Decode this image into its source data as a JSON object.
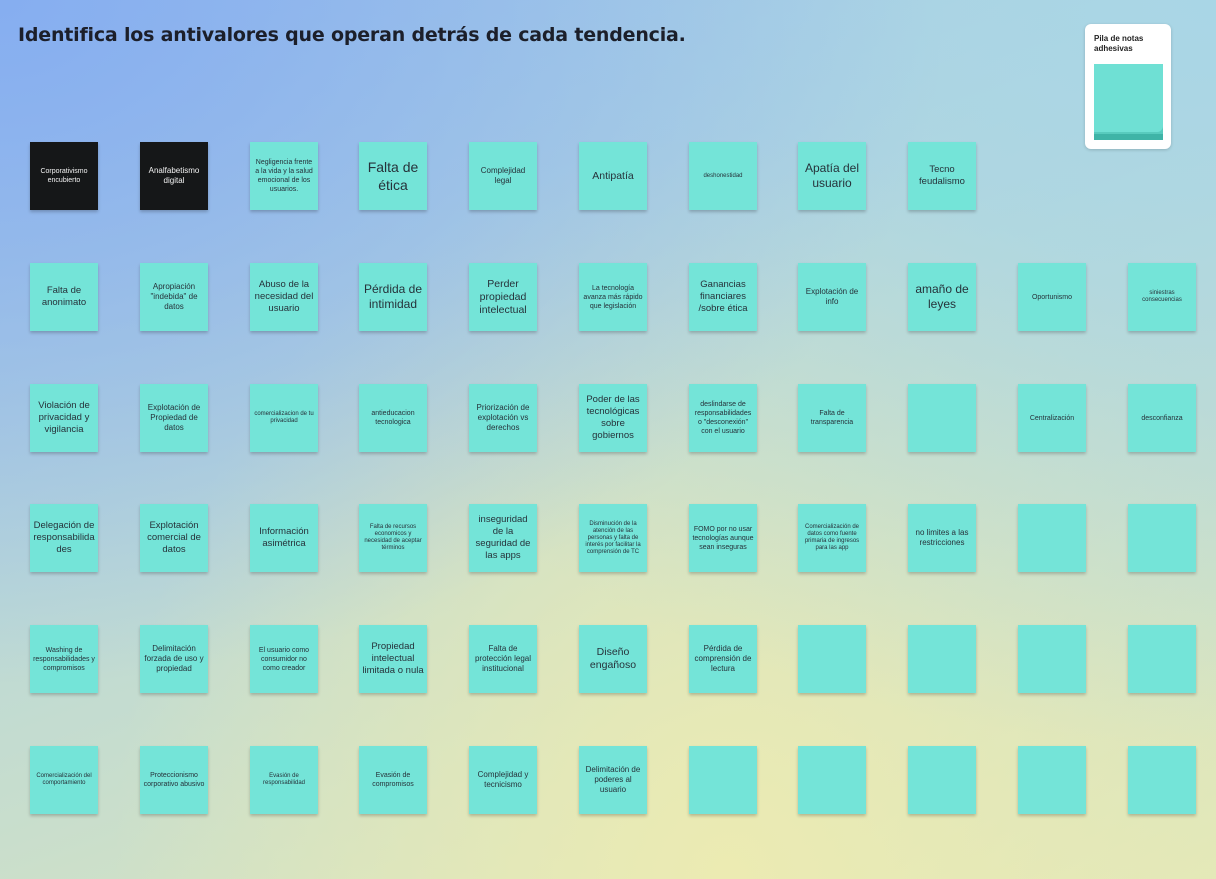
{
  "board": {
    "title": "Identifica los antivalores que operan detrás de cada tendencia.",
    "pile_label": "Pila de notas adhesivas"
  },
  "rows": [
    [
      "Corporativismo encubierto",
      "Analfabetismo digital",
      "Negligencia frente a la vida y la salud emocional de los usuarios.",
      "Falta de ética",
      "Complejidad legal",
      "Antipatía",
      "deshonestidad",
      "Apatía del usuario",
      "Tecno feudalismo"
    ],
    [
      "Falta de anonimato",
      "Apropiación \"indebida\" de datos",
      "Abuso de la necesidad del usuario",
      "Pérdida de intimidad",
      "Perder propiedad intelectual",
      "La tecnología avanza más rápido que legislación",
      "Ganancias financiares /sobre ética",
      "Explotación de info",
      "amaño de leyes",
      "Oportunismo",
      "siniestras consecuencias"
    ],
    [
      "Violación de privacidad y vigilancia",
      "Explotación de Propiedad de datos",
      "comercializacion de tu privacidad",
      "antieducacion tecnologica",
      "Priorización de explotación vs derechos",
      "Poder de las tecnológicas sobre gobiernos",
      "deslindarse de responsabilidades o \"desconexión\" con el usuario",
      "Falta de transparencia",
      "",
      "Centralización",
      "desconfianza"
    ],
    [
      "Delegación de responsabilidades",
      "Explotación comercial de datos",
      "Información asimétrica",
      "Falta de recursos economicos y necesidad de aceptar términos",
      "inseguridad de la seguridad de las apps",
      "Disminución de la atención de las personas y falta de interés por facilitar la comprensión de TC",
      "FOMO por no usar tecnologías aunque sean inseguras",
      "Comercialización de datos como fuente primaria de ingresos para las app",
      "no limites a las restricciones",
      "",
      ""
    ],
    [
      "Washing de responsabilidades y compromisos",
      "Delimitación forzada de uso y propiedad",
      "El usuario como consumidor no como creador",
      "Propiedad intelectual limitada o nula",
      "Falta de protección legal institucional",
      "Diseño engañoso",
      "Pérdida de comprensión de lectura",
      "",
      "",
      "",
      ""
    ],
    [
      "Comercialización del comportamiento",
      "Proteccionismo corporativo abusivo",
      "Evasión de responsabilidad",
      "Evasión de compromisos",
      "Complejidad y tecnicismo",
      "Delimitación de poderes al usuario",
      "",
      "",
      "",
      "",
      ""
    ]
  ]
}
